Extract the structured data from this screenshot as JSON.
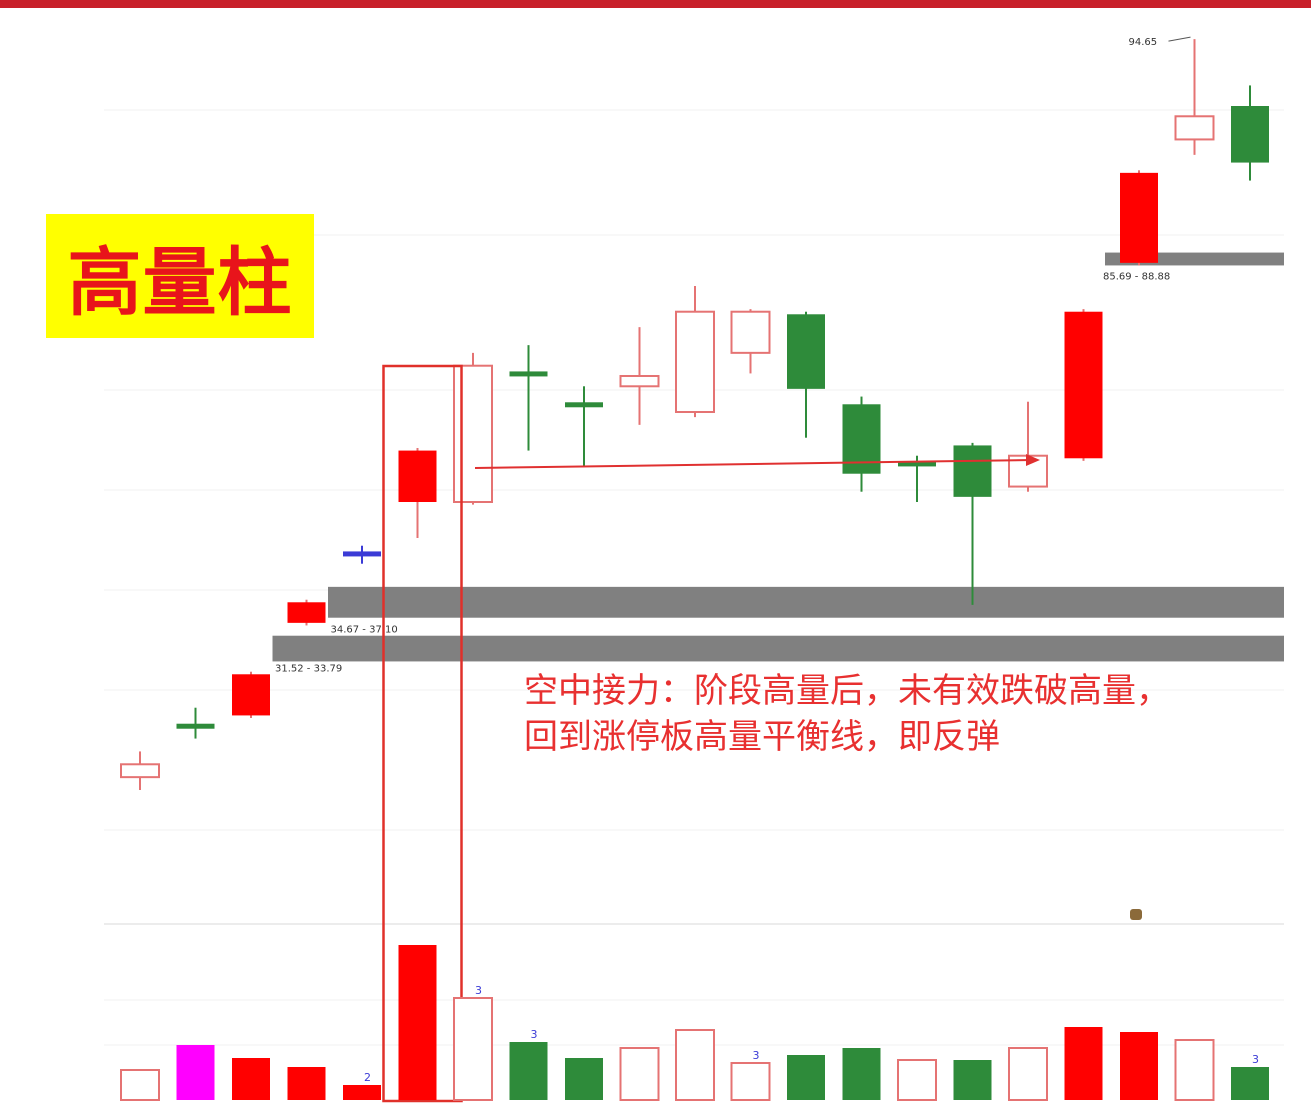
{
  "title": "高量柱",
  "annotation": "空中接力：阶段高量后，未有效跌破高量，回到涨停板高量平衡线，即反弹",
  "colors": {
    "up": "#ff0000",
    "up_hollow": "#e57373",
    "down": "#2e8b3a",
    "doji": "#2e8b3a",
    "zone": "#808080",
    "highlight_box": "#e0302a",
    "arrow": "#e03030",
    "blue_line": "#3b3bd6",
    "magenta": "#ff00ff"
  },
  "chart_data": {
    "type": "candlestick",
    "title": "高量柱",
    "price_level_labels": [
      "31.52 - 33.79",
      "34.67 - 37.10",
      "85.69 - 88.88"
    ],
    "high_label": "94.65",
    "candles": [
      {
        "style": "hollow",
        "open": 17.5,
        "close": 18.0,
        "high": 18.5,
        "low": 17.0
      },
      {
        "style": "doji_green",
        "open": 19.5,
        "close": 19.5,
        "high": 20.2,
        "low": 19.0
      },
      {
        "style": "filled_red",
        "open": 19.9,
        "close": 21.5,
        "high": 21.6,
        "low": 19.8
      },
      {
        "style": "filled_red",
        "open": 23.5,
        "close": 24.3,
        "high": 24.4,
        "low": 23.4
      },
      {
        "style": "doji_blue",
        "open": 26.2,
        "close": 26.2,
        "high": 26.5,
        "low": 25.8
      },
      {
        "style": "filled_red",
        "open": 28.2,
        "close": 30.2,
        "high": 30.3,
        "low": 26.8
      },
      {
        "style": "hollow",
        "open": 28.2,
        "close": 33.5,
        "high": 34.0,
        "low": 28.1
      },
      {
        "style": "doji_green",
        "open": 33.2,
        "close": 33.2,
        "high": 34.3,
        "low": 30.2
      },
      {
        "style": "doji_green",
        "open": 32.0,
        "close": 32.0,
        "high": 32.7,
        "low": 29.6
      },
      {
        "style": "hollow",
        "open": 32.7,
        "close": 33.1,
        "high": 35.0,
        "low": 31.2
      },
      {
        "style": "hollow",
        "open": 31.7,
        "close": 35.6,
        "high": 36.6,
        "low": 31.5
      },
      {
        "style": "hollow",
        "open": 34.0,
        "close": 35.6,
        "high": 35.7,
        "low": 33.2
      },
      {
        "style": "filled_green",
        "open": 35.5,
        "close": 32.6,
        "high": 35.6,
        "low": 30.7
      },
      {
        "style": "filled_green",
        "open": 32.0,
        "close": 29.3,
        "high": 32.3,
        "low": 28.6
      },
      {
        "style": "doji_green",
        "open": 29.7,
        "close": 29.7,
        "high": 30.0,
        "low": 28.2
      },
      {
        "style": "filled_green",
        "open": 30.4,
        "close": 28.4,
        "high": 30.5,
        "low": 24.2
      },
      {
        "style": "hollow",
        "open": 28.8,
        "close": 30.0,
        "high": 32.1,
        "low": 28.6
      },
      {
        "style": "filled_red",
        "open": 29.9,
        "close": 35.6,
        "high": 35.7,
        "low": 29.8
      },
      {
        "style": "filled_red",
        "open": 37.5,
        "close": 41.0,
        "high": 41.1,
        "low": 37.4
      },
      {
        "style": "hollow",
        "open": 42.3,
        "close": 43.2,
        "high": 46.2,
        "low": 41.7
      },
      {
        "style": "filled_green",
        "open": 43.6,
        "close": 41.4,
        "high": 44.4,
        "low": 40.7
      }
    ],
    "volume": [
      {
        "value": 30,
        "style": "hollow"
      },
      {
        "value": 55,
        "style": "magenta"
      },
      {
        "value": 42,
        "style": "filled_red"
      },
      {
        "value": 33,
        "style": "filled_red"
      },
      {
        "value": 15,
        "style": "filled_red",
        "mark": "2"
      },
      {
        "value": 155,
        "style": "filled_red"
      },
      {
        "value": 102,
        "style": "hollow",
        "mark": "3"
      },
      {
        "value": 58,
        "style": "filled_green",
        "mark": "3"
      },
      {
        "value": 42,
        "style": "filled_green"
      },
      {
        "value": 52,
        "style": "hollow"
      },
      {
        "value": 70,
        "style": "hollow"
      },
      {
        "value": 37,
        "style": "hollow",
        "mark": "3"
      },
      {
        "value": 45,
        "style": "filled_green"
      },
      {
        "value": 52,
        "style": "filled_green"
      },
      {
        "value": 40,
        "style": "hollow"
      },
      {
        "value": 40,
        "style": "filled_green"
      },
      {
        "value": 52,
        "style": "hollow"
      },
      {
        "value": 73,
        "style": "filled_red"
      },
      {
        "value": 68,
        "style": "filled_red"
      },
      {
        "value": 60,
        "style": "hollow"
      },
      {
        "value": 33,
        "style": "filled_green",
        "mark": "3"
      }
    ],
    "zones": [
      {
        "low": 22.0,
        "high": 23.0,
        "from_candle": 3
      },
      {
        "low": 23.7,
        "high": 24.9,
        "from_candle": 4
      },
      {
        "low": 37.4,
        "high": 37.9,
        "from_candle": 18
      }
    ],
    "highlight_box_candle": 5,
    "arrow_candles": [
      6,
      16
    ]
  }
}
